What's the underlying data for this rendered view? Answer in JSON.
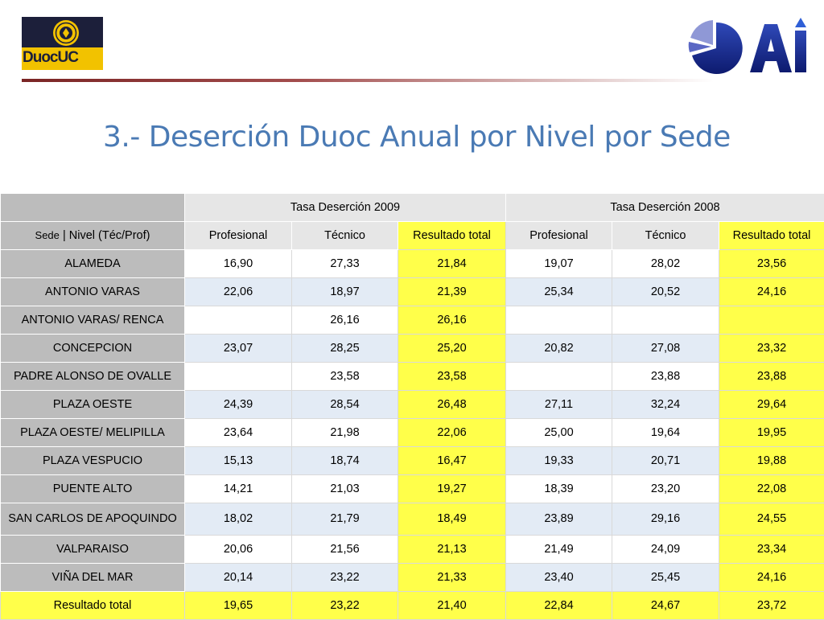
{
  "header": {
    "logo_left": {
      "text": "DuocUC",
      "colors": {
        "navy": "#1c1f3a",
        "gold": "#f2c200"
      }
    },
    "logo_right": {
      "text": "AI",
      "colors": {
        "navy": "#1a2a8a",
        "accent": "#2f5fd6"
      }
    }
  },
  "title": "3.- Deserción Duoc Anual por Nivel por Sede",
  "table": {
    "group_headers": [
      "Tasa Deserción 2009",
      "Tasa Deserción 2008"
    ],
    "corner_label": {
      "left": "Sede",
      "separator": "|",
      "right": "Nivel (Téc/Prof)"
    },
    "column_headers": [
      "Profesional",
      "Técnico",
      "Resultado total",
      "Profesional",
      "Técnico",
      "Resultado total"
    ],
    "rows": [
      {
        "sede": "ALAMEDA",
        "values": [
          "16,90",
          "27,33",
          "21,84",
          "19,07",
          "28,02",
          "23,56"
        ]
      },
      {
        "sede": "ANTONIO VARAS",
        "values": [
          "22,06",
          "18,97",
          "21,39",
          "25,34",
          "20,52",
          "24,16"
        ]
      },
      {
        "sede": "ANTONIO VARAS/ RENCA",
        "values": [
          "",
          "26,16",
          "26,16",
          "",
          "",
          ""
        ]
      },
      {
        "sede": "CONCEPCION",
        "values": [
          "23,07",
          "28,25",
          "25,20",
          "20,82",
          "27,08",
          "23,32"
        ]
      },
      {
        "sede": "PADRE ALONSO DE OVALLE",
        "values": [
          "",
          "23,58",
          "23,58",
          "",
          "23,88",
          "23,88"
        ]
      },
      {
        "sede": "PLAZA OESTE",
        "values": [
          "24,39",
          "28,54",
          "26,48",
          "27,11",
          "32,24",
          "29,64"
        ]
      },
      {
        "sede": "PLAZA OESTE/ MELIPILLA",
        "values": [
          "23,64",
          "21,98",
          "22,06",
          "25,00",
          "19,64",
          "19,95"
        ]
      },
      {
        "sede": "PLAZA VESPUCIO",
        "values": [
          "15,13",
          "18,74",
          "16,47",
          "19,33",
          "20,71",
          "19,88"
        ]
      },
      {
        "sede": "PUENTE ALTO",
        "values": [
          "14,21",
          "21,03",
          "19,27",
          "18,39",
          "23,20",
          "22,08"
        ]
      },
      {
        "sede": "SAN CARLOS DE APOQUINDO",
        "values": [
          "18,02",
          "21,79",
          "18,49",
          "23,89",
          "29,16",
          "24,55"
        ]
      },
      {
        "sede": "VALPARAISO",
        "values": [
          "20,06",
          "21,56",
          "21,13",
          "21,49",
          "24,09",
          "23,34"
        ]
      },
      {
        "sede": "VIÑA DEL MAR",
        "values": [
          "20,14",
          "23,22",
          "21,33",
          "23,40",
          "25,45",
          "24,16"
        ]
      }
    ],
    "total_row": {
      "sede": "Resultado total",
      "values": [
        "19,65",
        "23,22",
        "21,40",
        "22,84",
        "24,67",
        "23,72"
      ]
    }
  },
  "colors": {
    "title": "#4a7ab4",
    "sede_column": "#bcbcbc",
    "header_row": "#e6e6e6",
    "row_white": "#ffffff",
    "row_blue": "#e3ebf5",
    "total_yellow": "#ffff4a",
    "divider": "#7a2424"
  }
}
